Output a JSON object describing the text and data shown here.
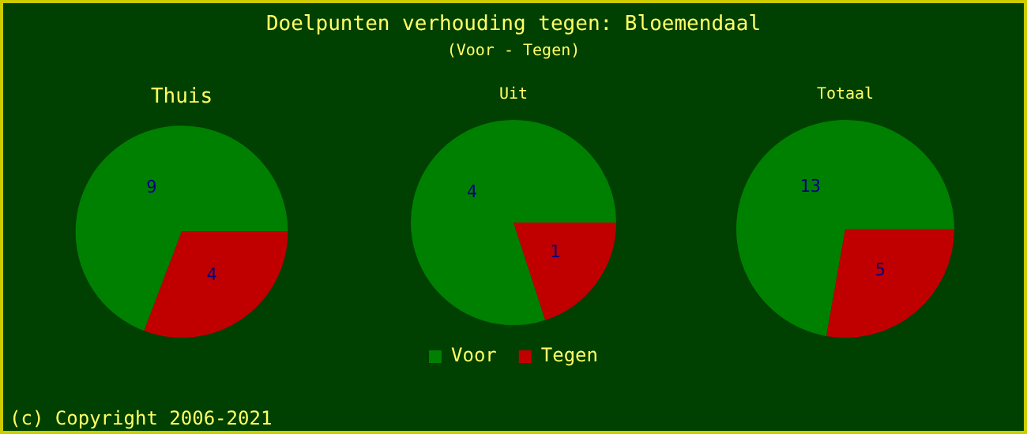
{
  "chart_data": [
    {
      "type": "other",
      "title": "Doelpunten verhouding tegen: Bloemendaal",
      "subtitle": "(Voor - Tegen)",
      "annotations": [
        "(c) Copyright 2006-2021"
      ]
    },
    {
      "type": "pie",
      "title": "Thuis",
      "categories": [
        null,
        null
      ],
      "values": [
        9,
        4
      ],
      "colors": [
        "#008000",
        "#c00000"
      ],
      "data_labels": true
    },
    {
      "type": "pie",
      "title": "Uit",
      "categories": [
        "Voor",
        "Tegen"
      ],
      "values": [
        4,
        1
      ],
      "colors": [
        "#008000",
        "#c00000"
      ],
      "data_labels": true,
      "legend": "bottom"
    },
    {
      "type": "pie",
      "title": "Totaal",
      "categories": [
        null,
        null
      ],
      "values": [
        13,
        5
      ],
      "colors": [
        "#008000",
        "#c00000"
      ],
      "data_labels": true
    }
  ]
}
